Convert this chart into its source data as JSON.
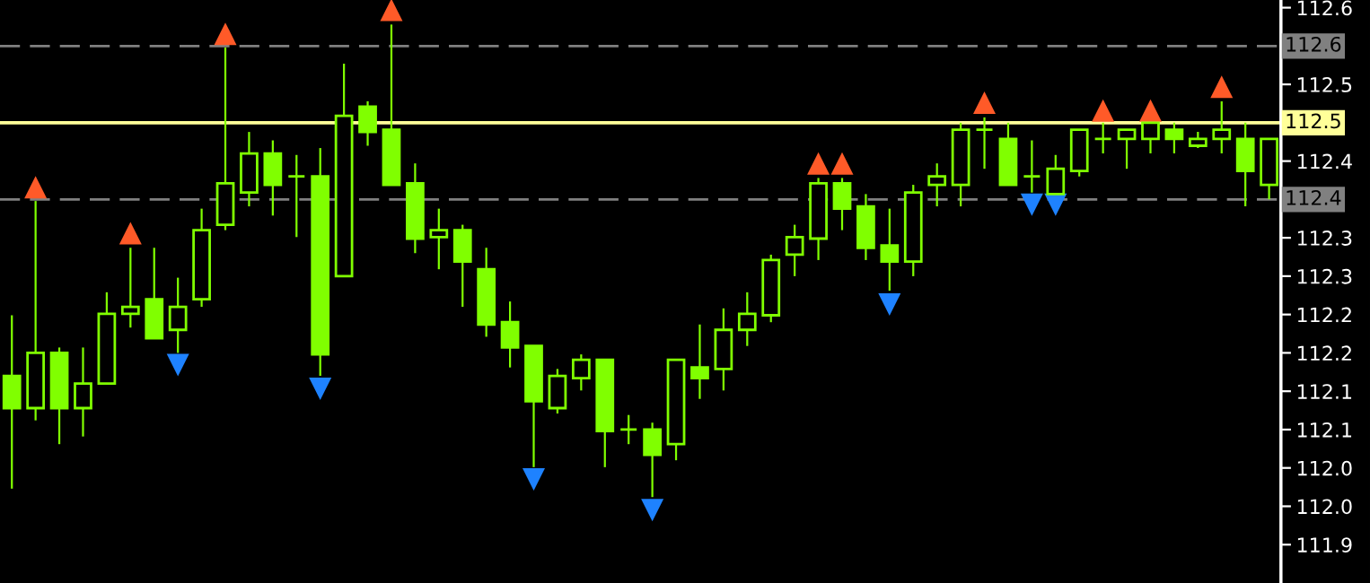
{
  "chart_data": {
    "type": "candlestick",
    "categories": [
      null,
      null,
      null,
      null,
      null,
      null,
      null,
      null,
      null,
      null,
      null,
      null,
      null,
      null,
      null,
      null,
      null,
      null,
      null,
      null,
      null,
      null,
      null,
      null,
      null,
      null,
      null,
      null,
      null,
      null,
      null,
      null,
      null,
      null,
      null,
      null,
      null,
      null,
      null,
      null,
      null,
      null,
      null,
      null,
      null,
      null,
      null,
      null,
      null,
      null,
      null,
      null,
      null,
      null
    ],
    "color": "#80ff00",
    "ohlc": [
      [
        112.17,
        112.249,
        112.023,
        112.128
      ],
      [
        112.128,
        112.398,
        112.112,
        112.2
      ],
      [
        112.2,
        112.207,
        112.081,
        112.128
      ],
      [
        112.128,
        112.207,
        112.091,
        112.16
      ],
      [
        112.16,
        112.279,
        112.16,
        112.251
      ],
      [
        112.251,
        112.337,
        112.233,
        112.26
      ],
      [
        112.27,
        112.337,
        112.219,
        112.219
      ],
      [
        112.23,
        112.298,
        112.2,
        112.26
      ],
      [
        112.27,
        112.388,
        112.26,
        112.36
      ],
      [
        112.367,
        112.598,
        112.36,
        112.421
      ],
      [
        112.409,
        112.488,
        112.391,
        112.46
      ],
      [
        112.46,
        112.477,
        112.379,
        112.419
      ],
      [
        112.43,
        112.458,
        112.351,
        112.43
      ],
      [
        112.43,
        112.467,
        112.17,
        112.198
      ],
      [
        112.3,
        112.577,
        112.3,
        112.509
      ],
      [
        112.521,
        112.528,
        112.47,
        112.488
      ],
      [
        112.491,
        112.628,
        112.419,
        112.419
      ],
      [
        112.421,
        112.447,
        112.33,
        112.349
      ],
      [
        112.351,
        112.388,
        112.309,
        112.36
      ],
      [
        112.36,
        112.367,
        112.26,
        112.319
      ],
      [
        112.309,
        112.337,
        112.221,
        112.237
      ],
      [
        112.24,
        112.267,
        112.181,
        112.207
      ],
      [
        112.209,
        112.209,
        112.051,
        112.137
      ],
      [
        112.128,
        112.179,
        112.121,
        112.17
      ],
      [
        112.167,
        112.198,
        112.151,
        112.191
      ],
      [
        112.191,
        112.191,
        112.051,
        112.098
      ],
      [
        112.1,
        112.119,
        112.081,
        112.1
      ],
      [
        112.1,
        112.109,
        112.012,
        112.067
      ],
      [
        112.081,
        112.191,
        112.06,
        112.191
      ],
      [
        112.181,
        112.237,
        112.14,
        112.167
      ],
      [
        112.179,
        112.258,
        112.151,
        112.23
      ],
      [
        112.23,
        112.279,
        112.209,
        112.251
      ],
      [
        112.249,
        112.328,
        112.24,
        112.321
      ],
      [
        112.328,
        112.367,
        112.3,
        112.351
      ],
      [
        112.349,
        112.428,
        112.321,
        112.421
      ],
      [
        112.421,
        112.428,
        112.36,
        112.388
      ],
      [
        112.391,
        112.407,
        112.321,
        112.337
      ],
      [
        112.34,
        112.388,
        112.281,
        112.319
      ],
      [
        112.319,
        112.419,
        112.3,
        112.409
      ],
      [
        112.419,
        112.447,
        112.391,
        112.43
      ],
      [
        112.419,
        112.5,
        112.391,
        112.491
      ],
      [
        112.491,
        112.507,
        112.44,
        112.491
      ],
      [
        112.479,
        112.5,
        112.419,
        112.419
      ],
      [
        112.43,
        112.477,
        112.409,
        112.43
      ],
      [
        112.407,
        112.458,
        112.407,
        112.44
      ],
      [
        112.437,
        112.491,
        112.43,
        112.491
      ],
      [
        112.479,
        112.5,
        112.46,
        112.479
      ],
      [
        112.479,
        112.491,
        112.44,
        112.491
      ],
      [
        112.479,
        112.5,
        112.46,
        112.5
      ],
      [
        112.491,
        112.5,
        112.46,
        112.479
      ],
      [
        112.47,
        112.488,
        112.467,
        112.479
      ],
      [
        112.479,
        112.528,
        112.46,
        112.491
      ],
      [
        112.479,
        112.5,
        112.391,
        112.437
      ],
      [
        112.419,
        112.479,
        112.4,
        112.479
      ]
    ],
    "series": [
      {
        "type": "scatter",
        "color": "#ff5a28",
        "marker": "triangle",
        "values": [
          null,
          112.416,
          null,
          null,
          null,
          112.356,
          null,
          null,
          null,
          112.616,
          null,
          null,
          null,
          null,
          null,
          null,
          112.647,
          null,
          null,
          null,
          null,
          null,
          null,
          null,
          null,
          null,
          null,
          null,
          null,
          null,
          null,
          null,
          null,
          null,
          112.447,
          112.447,
          null,
          null,
          null,
          null,
          null,
          112.526,
          null,
          null,
          null,
          null,
          112.516,
          null,
          112.516,
          null,
          null,
          112.547,
          null,
          null
        ]
      },
      {
        "type": "scatter",
        "color": "#1e82ff",
        "marker": "triangle-down",
        "values": [
          null,
          null,
          null,
          null,
          null,
          null,
          null,
          112.184,
          null,
          null,
          null,
          null,
          null,
          112.153,
          null,
          null,
          null,
          null,
          null,
          null,
          null,
          null,
          112.035,
          null,
          null,
          null,
          null,
          111.995,
          null,
          null,
          null,
          null,
          null,
          null,
          null,
          null,
          null,
          112.263,
          null,
          null,
          null,
          null,
          null,
          112.393,
          112.393,
          null,
          null,
          null,
          null,
          null,
          null,
          null,
          null,
          null
        ]
      }
    ],
    "ylim": [
      111.9,
      112.66
    ],
    "yticks": [
      {
        "value": 112.65,
        "label": "112.6"
      },
      {
        "value": 112.55,
        "label": "112.5"
      },
      {
        "value": 112.45,
        "label": "112.4"
      },
      {
        "value": 112.35,
        "label": "112.3"
      },
      {
        "value": 112.3,
        "label": "112.3"
      },
      {
        "value": 112.25,
        "label": "112.2"
      },
      {
        "value": 112.2,
        "label": "112.2"
      },
      {
        "value": 112.15,
        "label": "112.1"
      },
      {
        "value": 112.1,
        "label": "112.1"
      },
      {
        "value": 112.05,
        "label": "112.0"
      },
      {
        "value": 112.0,
        "label": "112.0"
      },
      {
        "value": 111.95,
        "label": "111.9"
      }
    ],
    "ref_lines": [
      {
        "axis": "y",
        "value": 112.6,
        "label": "112.6",
        "color": "#808080",
        "line_style": "dashed"
      },
      {
        "axis": "y",
        "value": 112.5,
        "label": "112.5",
        "color": "#ffff99",
        "line_style": "solid"
      },
      {
        "axis": "y",
        "value": 112.4,
        "label": "112.4",
        "color": "#808080",
        "line_style": "dashed"
      }
    ],
    "tick_labels": "y"
  }
}
